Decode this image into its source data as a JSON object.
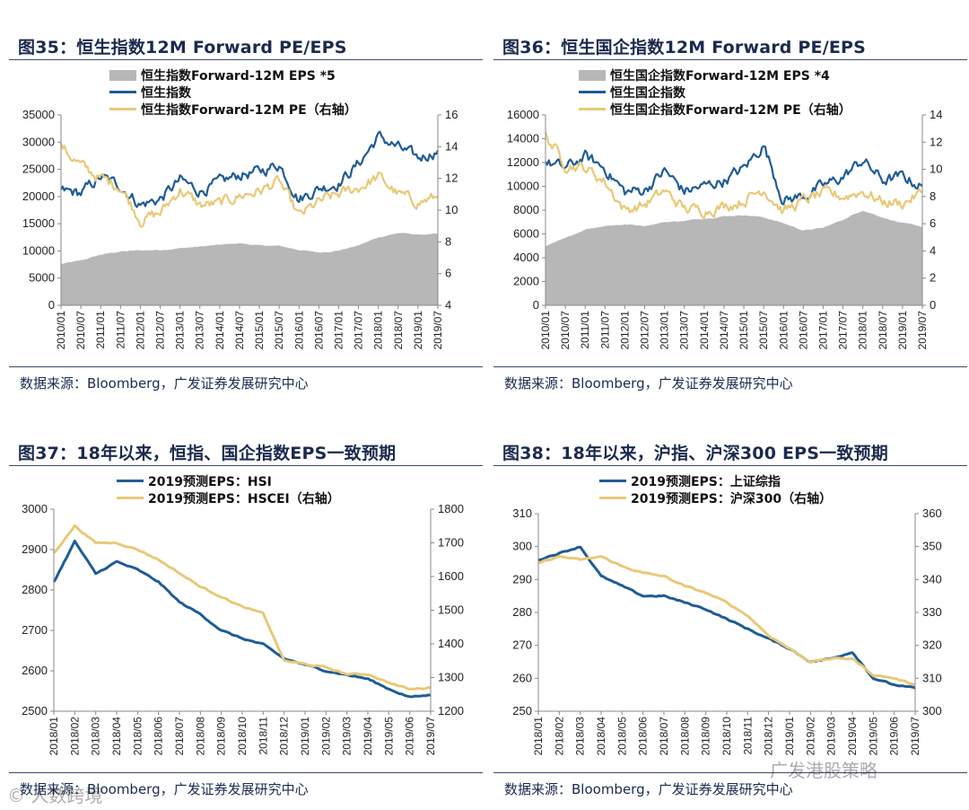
{
  "colors": {
    "eps_area": "#b7b7b7",
    "blue": "#1f5c94",
    "gold": "#e8c978",
    "title": "#1b2a4e"
  },
  "watermarks": {
    "left": "© 人数跨境",
    "right": "广发港股策略"
  },
  "chart_data": [
    {
      "type": "line",
      "fig": "图35：",
      "title": "恒生指数12M Forward PE/EPS",
      "source": "数据来源：Bloomberg，广发证券发展研究中心",
      "categories": [
        "2010/01",
        "2010/07",
        "2011/01",
        "2011/07",
        "2012/01",
        "2012/07",
        "2013/01",
        "2013/07",
        "2014/01",
        "2014/07",
        "2015/01",
        "2015/07",
        "2016/01",
        "2016/07",
        "2017/01",
        "2017/07",
        "2018/01",
        "2018/07",
        "2019/01",
        "2019/07"
      ],
      "y_left": {
        "min": 0,
        "max": 35000,
        "ticks": [
          "35000",
          "30000",
          "25000",
          "20000",
          "15000",
          "10000",
          "5000",
          "0"
        ]
      },
      "y_right": {
        "min": 4,
        "max": 16,
        "ticks": [
          "16",
          "14",
          "12",
          "10",
          "8",
          "6",
          "4"
        ]
      },
      "series": [
        {
          "name": "恒生指数Forward-12M EPS *5",
          "kind": "area",
          "axis": "left",
          "values": [
            7600,
            8200,
            9300,
            9900,
            10100,
            10200,
            10500,
            10800,
            11100,
            11400,
            11000,
            10900,
            10200,
            9700,
            10100,
            11000,
            12500,
            13300,
            13000,
            13100
          ]
        },
        {
          "name": "恒生指数",
          "kind": "line",
          "axis": "left",
          "values": [
            21000,
            20600,
            23500,
            22000,
            18500,
            19500,
            23000,
            21000,
            22500,
            24000,
            24500,
            26000,
            19500,
            21500,
            22500,
            26000,
            31000,
            29000,
            27000,
            28500
          ]
        },
        {
          "name": "恒生指数Forward-12M PE（右轴）",
          "kind": "line",
          "axis": "right",
          "values": [
            14.0,
            12.8,
            12.0,
            11.5,
            9.4,
            9.8,
            11.3,
            10.3,
            10.4,
            10.9,
            11.2,
            11.8,
            9.6,
            10.5,
            11.0,
            11.4,
            12.1,
            11.0,
            10.5,
            10.8
          ]
        }
      ]
    },
    {
      "type": "line",
      "fig": "图36：",
      "title": "恒生国企指数12M Forward PE/EPS",
      "source": "数据来源：Bloomberg，广发证券发展研究中心",
      "categories": [
        "2010/01",
        "2010/07",
        "2011/01",
        "2011/07",
        "2012/01",
        "2012/07",
        "2013/01",
        "2013/07",
        "2014/01",
        "2014/07",
        "2015/01",
        "2015/07",
        "2016/01",
        "2016/07",
        "2017/01",
        "2017/07",
        "2018/01",
        "2018/07",
        "2019/01",
        "2019/07"
      ],
      "y_left": {
        "min": 0,
        "max": 16000,
        "ticks": [
          "16000",
          "14000",
          "12000",
          "10000",
          "8000",
          "6000",
          "4000",
          "2000",
          "0"
        ]
      },
      "y_right": {
        "min": 0,
        "max": 14,
        "ticks": [
          "14",
          "12",
          "10",
          "8",
          "6",
          "4",
          "2",
          "0"
        ]
      },
      "series": [
        {
          "name": "恒生国企指数Forward-12M EPS *4",
          "kind": "area",
          "axis": "left",
          "values": [
            5000,
            5600,
            6400,
            6700,
            6800,
            6700,
            7000,
            7100,
            7300,
            7500,
            7600,
            7400,
            6900,
            6300,
            6500,
            7200,
            8000,
            7400,
            6900,
            6600
          ]
        },
        {
          "name": "恒生国企指数",
          "kind": "line",
          "axis": "left",
          "values": [
            12000,
            11500,
            12500,
            11500,
            9500,
            9700,
            11300,
            9600,
            10000,
            10500,
            11500,
            13500,
            8800,
            9200,
            10000,
            10800,
            12200,
            10500,
            10800,
            10000
          ]
        },
        {
          "name": "恒生国企指数Forward-12M PE（右轴）",
          "kind": "line",
          "axis": "right",
          "values": [
            12.5,
            10.4,
            10.1,
            9.1,
            7.0,
            7.4,
            8.4,
            7.1,
            7.0,
            7.3,
            7.7,
            8.6,
            6.9,
            7.7,
            8.2,
            8.0,
            8.4,
            7.6,
            7.5,
            8.3
          ]
        }
      ]
    },
    {
      "type": "line",
      "fig": "图37：",
      "title": "18年以来，恒指、国企指数EPS一致预期",
      "source": "数据来源：Bloomberg，广发证券发展研究中心",
      "categories": [
        "2018/01",
        "2018/02",
        "2018/03",
        "2018/04",
        "2018/05",
        "2018/06",
        "2018/07",
        "2018/08",
        "2018/09",
        "2018/10",
        "2018/11",
        "2018/12",
        "2019/01",
        "2019/02",
        "2019/03",
        "2019/04",
        "2019/05",
        "2019/06",
        "2019/07"
      ],
      "y_left": {
        "min": 2500,
        "max": 3000,
        "ticks": [
          "3000",
          "2900",
          "2800",
          "2700",
          "2600",
          "2500"
        ]
      },
      "y_right": {
        "min": 1200,
        "max": 1800,
        "ticks": [
          "1800",
          "1700",
          "1600",
          "1500",
          "1400",
          "1300",
          "1200"
        ]
      },
      "series": [
        {
          "name": "2019预测EPS：HSI",
          "kind": "line",
          "axis": "left",
          "values": [
            2820,
            2920,
            2840,
            2870,
            2850,
            2820,
            2770,
            2740,
            2700,
            2680,
            2665,
            2630,
            2615,
            2600,
            2590,
            2580,
            2555,
            2535,
            2540
          ]
        },
        {
          "name": "2019预测EPS：HSCEI（右轴）",
          "kind": "line",
          "axis": "right",
          "values": [
            1670,
            1750,
            1700,
            1700,
            1680,
            1650,
            1610,
            1570,
            1540,
            1510,
            1490,
            1350,
            1340,
            1330,
            1310,
            1310,
            1285,
            1265,
            1270
          ]
        }
      ]
    },
    {
      "type": "line",
      "fig": "图38：",
      "title": "18年以来，沪指、沪深300 EPS一致预期",
      "source": "数据来源：Bloomberg，广发证券发展研究中心",
      "categories": [
        "2018/01",
        "2018/02",
        "2018/03",
        "2018/04",
        "2018/05",
        "2018/06",
        "2018/07",
        "2018/08",
        "2018/09",
        "2018/10",
        "2018/11",
        "2018/12",
        "2019/01",
        "2019/02",
        "2019/03",
        "2019/04",
        "2019/05",
        "2019/06",
        "2019/07"
      ],
      "y_left": {
        "min": 250,
        "max": 310,
        "ticks": [
          "310",
          "300",
          "290",
          "280",
          "270",
          "260",
          "250"
        ]
      },
      "y_right": {
        "min": 300,
        "max": 360,
        "ticks": [
          "360",
          "350",
          "340",
          "330",
          "320",
          "310",
          "300"
        ]
      },
      "series": [
        {
          "name": "2019预测EPS：上证综指",
          "kind": "line",
          "axis": "left",
          "values": [
            296,
            298,
            300,
            291,
            288,
            285,
            285,
            283,
            281,
            278,
            275,
            272,
            269,
            265,
            266,
            268,
            260,
            258,
            257
          ]
        },
        {
          "name": "2019预测EPS：沪深300（右轴）",
          "kind": "line",
          "axis": "right",
          "values": [
            345,
            347,
            346,
            347,
            344,
            342,
            341,
            338,
            336,
            333,
            329,
            323,
            319,
            315,
            316,
            316,
            311,
            310,
            308
          ]
        }
      ]
    }
  ]
}
